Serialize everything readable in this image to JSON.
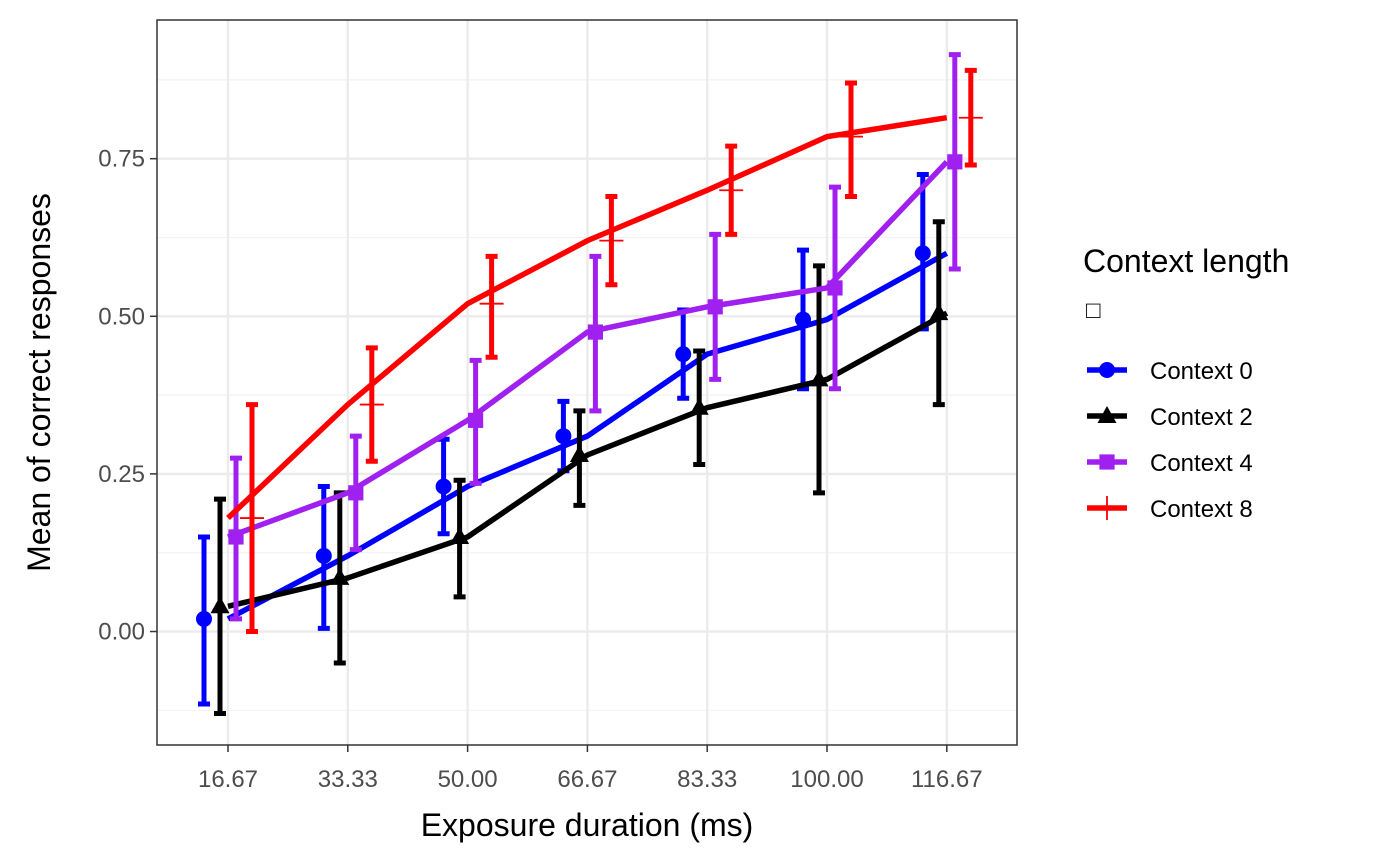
{
  "chart_data": {
    "type": "line",
    "title": "",
    "xlabel": "Exposure duration (ms)",
    "ylabel": "Mean of correct responses",
    "categories": [
      "16.67",
      "33.33",
      "50.00",
      "66.67",
      "83.33",
      "100.00",
      "116.67"
    ],
    "y_ticks": [
      "0.00",
      "0.25",
      "0.50",
      "0.75"
    ],
    "ylim": [
      -0.18,
      0.97
    ],
    "grid": true,
    "legend": {
      "title": "Context length",
      "placement": "right",
      "title_glyph": "□"
    },
    "error_bars": true,
    "series": [
      {
        "name": "Context 0",
        "color": "#0000ff",
        "marker": "circle",
        "values": [
          0.02,
          0.12,
          0.23,
          0.31,
          0.44,
          0.495,
          0.6
        ],
        "lower": [
          -0.115,
          0.005,
          0.155,
          0.255,
          0.37,
          0.385,
          0.48
        ],
        "upper": [
          0.15,
          0.23,
          0.305,
          0.365,
          0.51,
          0.605,
          0.725
        ]
      },
      {
        "name": "Context 2",
        "color": "#000000",
        "marker": "triangle",
        "values": [
          0.04,
          0.085,
          0.15,
          0.28,
          0.355,
          0.4,
          0.505
        ],
        "lower": [
          -0.13,
          -0.05,
          0.055,
          0.2,
          0.265,
          0.22,
          0.36
        ],
        "upper": [
          0.21,
          0.22,
          0.24,
          0.35,
          0.445,
          0.58,
          0.65
        ]
      },
      {
        "name": "Context 4",
        "color": "#a020f0",
        "marker": "square",
        "values": [
          0.15,
          0.22,
          0.335,
          0.475,
          0.515,
          0.545,
          0.745
        ],
        "lower": [
          0.02,
          0.13,
          0.235,
          0.35,
          0.4,
          0.385,
          0.575
        ],
        "upper": [
          0.275,
          0.31,
          0.43,
          0.595,
          0.63,
          0.705,
          0.915
        ]
      },
      {
        "name": "Context 8",
        "color": "#ff0000",
        "marker": "plus",
        "values": [
          0.18,
          0.36,
          0.52,
          0.62,
          0.7,
          0.785,
          0.815
        ],
        "lower": [
          0.0,
          0.27,
          0.435,
          0.55,
          0.63,
          0.69,
          0.74
        ],
        "upper": [
          0.36,
          0.45,
          0.595,
          0.69,
          0.77,
          0.87,
          0.89
        ]
      }
    ]
  }
}
